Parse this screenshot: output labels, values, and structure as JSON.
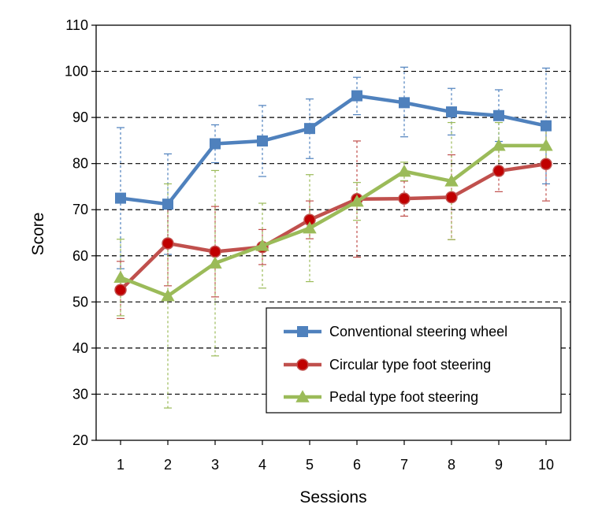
{
  "chart_data": {
    "type": "line",
    "title": "",
    "xlabel": "Sessions",
    "ylabel": "Score",
    "x": [
      1,
      2,
      3,
      4,
      5,
      6,
      7,
      8,
      9,
      10
    ],
    "x_tick_labels": [
      "1",
      "2",
      "3",
      "4",
      "5",
      "6",
      "7",
      "8",
      "9",
      "10"
    ],
    "ylim": [
      20,
      110
    ],
    "y_ticks": [
      20,
      30,
      40,
      50,
      60,
      70,
      80,
      90,
      100,
      110
    ],
    "y_tick_labels": [
      "20",
      "30",
      "40",
      "50",
      "60",
      "70",
      "80",
      "90",
      "100",
      "110"
    ],
    "grid": "horizontal dashed",
    "legend_position": "bottom-right",
    "series": [
      {
        "name": "Conventional steering wheel",
        "color": "#4F81BD",
        "marker": "square",
        "values": [
          72.5,
          71.2,
          84.3,
          84.9,
          87.6,
          94.7,
          93.2,
          91.2,
          90.4,
          88.2
        ],
        "error_low": [
          57.2,
          60.3,
          80.2,
          77.2,
          81.1,
          90.6,
          85.8,
          86.2,
          84.8,
          75.6
        ],
        "error_high": [
          87.8,
          82.1,
          88.4,
          92.6,
          94.0,
          98.7,
          100.9,
          96.3,
          96.0,
          100.7
        ]
      },
      {
        "name": "Circular type foot steering",
        "color": "#C0504D",
        "marker": "circle",
        "values": [
          52.6,
          62.7,
          60.9,
          61.9,
          67.8,
          72.3,
          72.4,
          72.7,
          78.4,
          79.9
        ],
        "error_low": [
          46.4,
          53.5,
          51.1,
          58.1,
          63.7,
          59.7,
          68.6,
          63.5,
          73.9,
          71.9
        ],
        "error_high": [
          58.8,
          71.9,
          70.7,
          65.7,
          71.9,
          84.9,
          76.2,
          81.9,
          82.9,
          87.9
        ]
      },
      {
        "name": "Pedal type foot steering",
        "color": "#9BBB59",
        "marker": "triangle",
        "values": [
          55.3,
          51.3,
          58.4,
          62.2,
          66.0,
          71.8,
          78.3,
          76.2,
          83.9,
          83.9
        ],
        "error_low": [
          47.0,
          27.0,
          38.3,
          53.0,
          54.4,
          67.7,
          76.3,
          63.5,
          78.9,
          79.9
        ],
        "error_high": [
          63.6,
          75.6,
          78.5,
          71.4,
          77.6,
          75.9,
          80.3,
          88.9,
          88.9,
          87.9
        ]
      }
    ]
  }
}
